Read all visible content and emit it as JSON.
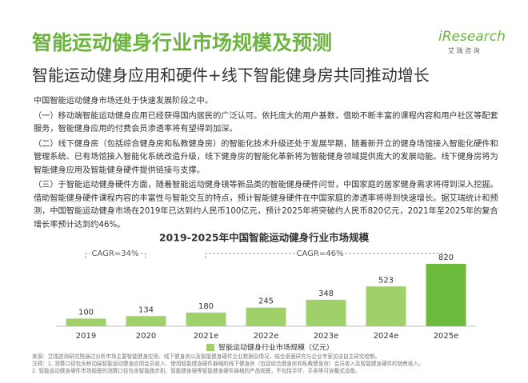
{
  "header": {
    "title": "智能运动健身行业市场规模及预测",
    "subtitle": "智能运动健身应用和硬件+线下智能健身房共同推动增长",
    "logo": "iResearch",
    "logo_sub": "艾 瑞 咨 询"
  },
  "paragraphs": [
    "中国智能运动健身市场还处于快速发展阶段之中。",
    "（一）移动端智能运动健身应用已经获得国内居民的广泛认可。依托庞大的用户基数，借助不断丰富的课程内容和用户社区等配套服务，智能健身应用的付费会员渗透率将有望得到加深。",
    "（二）线下健身房（包括综合健身房和私教健身房）的智能化技术升级还处于发展早期，随着新开立的健身场馆接入智能化硬件和管理系统、已有场馆接入智能化系统改造升级，线下健身房的智能化革新将为智能健身领域提供庞大的发展动能。线下健身房将为智能健身应用及智能健身硬件提供链接与支撑。",
    "（三）于智能运动健身硬件方面，随着智能运动健身镜等新品类的智能健身硬件问世，中国家庭的居家健身需求将得到深入挖掘。借助智能健身硬件课程内容的丰富性与智能交互的特点，预计智能健身硬件在中国家庭的渗透率将得到快速增长。据艾瑞统计和预测，中国智能运动健身市场在2019年已达到约人民币100亿元，预计2025年将突破约人民币820亿元，2021年至2025年的复合增长率预计达到约46%。"
  ],
  "chart_data": {
    "type": "bar",
    "title": "2019-2025年中国智能运动健身行业市场规模",
    "categories": [
      "2019",
      "2020",
      "2021e",
      "2022e",
      "2023e",
      "2024e",
      "2025e"
    ],
    "series": [
      {
        "name": "智能运动健身行业市场规模（亿元）",
        "color": "#9fd06a",
        "values": [
          100,
          134,
          180,
          245,
          348,
          523,
          820
        ]
      }
    ],
    "highlight_color": "#6dbb3c",
    "annotations": [
      "CAGR=34%",
      "CAGR=46%"
    ]
  },
  "footnotes": [
    "来源：艾瑞咨询研究院通过分析市场主要智能健身应用、线下健身房以及智能健身硬件企业数据及情况，结合桌面研究与企业专家访谈自主研究绘制。",
    "注释：1. 测算口径包含移动端智能运动健身应用会员收入、使用智能健身硬件器械的线下健身房（包括综合健身房和私教健身房）会员收入及智能健身硬件的销售收入。",
    "2. 智能运动健身硬件市场规模的测算口径包含智能跑步机、智能健身镜等智能健身硬件器械的产品规模，不包括手环、手表等可穿戴式设备。"
  ]
}
